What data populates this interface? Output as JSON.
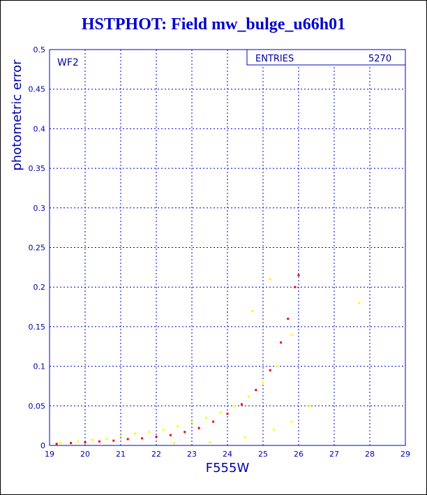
{
  "title": "HSTPHOT: Field mw_bulge_u66h01",
  "chart_data": {
    "type": "scatter",
    "title": "HSTPHOT: Field mw_bulge_u66h01",
    "xlabel": "F555W",
    "ylabel": "photometric error",
    "xlim": [
      19,
      29
    ],
    "ylim": [
      0,
      0.5
    ],
    "x_ticks": [
      "19",
      "20",
      "21",
      "22",
      "23",
      "24",
      "25",
      "26",
      "27",
      "28",
      "29"
    ],
    "y_ticks": [
      "0",
      "0.05",
      "0.1",
      "0.15",
      "0.2",
      "0.25",
      "0.3",
      "0.35",
      "0.4",
      "0.45",
      "0.5"
    ],
    "grid": true,
    "panel_label": "WF2",
    "stats": {
      "label": "ENTRIES",
      "value": "5270"
    },
    "series": [
      {
        "color": "#ffff00",
        "points": [
          [
            19.3,
            0.003
          ],
          [
            19.8,
            0.005
          ],
          [
            20.2,
            0.007
          ],
          [
            20.6,
            0.008
          ],
          [
            21.0,
            0.012
          ],
          [
            21.4,
            0.015
          ],
          [
            21.8,
            0.017
          ],
          [
            22.2,
            0.02
          ],
          [
            22.6,
            0.024
          ],
          [
            23.0,
            0.03
          ],
          [
            23.4,
            0.035
          ],
          [
            23.8,
            0.042
          ],
          [
            24.2,
            0.05
          ],
          [
            24.6,
            0.062
          ],
          [
            25.0,
            0.08
          ],
          [
            25.4,
            0.1
          ],
          [
            25.8,
            0.14
          ],
          [
            22.5,
            0.003
          ],
          [
            23.5,
            0.004
          ],
          [
            24.5,
            0.01
          ],
          [
            25.3,
            0.02
          ],
          [
            25.8,
            0.03
          ],
          [
            26.3,
            0.05
          ],
          [
            24.7,
            0.17
          ],
          [
            25.2,
            0.21
          ],
          [
            27.7,
            0.18
          ]
        ]
      },
      {
        "color": "#ff0000",
        "points": [
          [
            19.2,
            0.002
          ],
          [
            19.6,
            0.003
          ],
          [
            20.0,
            0.004
          ],
          [
            20.4,
            0.005
          ],
          [
            20.8,
            0.006
          ],
          [
            21.2,
            0.008
          ],
          [
            21.6,
            0.009
          ],
          [
            22.0,
            0.011
          ],
          [
            22.4,
            0.013
          ],
          [
            22.8,
            0.017
          ],
          [
            23.2,
            0.022
          ],
          [
            23.6,
            0.03
          ],
          [
            24.0,
            0.04
          ],
          [
            24.4,
            0.052
          ],
          [
            24.8,
            0.07
          ],
          [
            25.2,
            0.095
          ],
          [
            25.5,
            0.13
          ],
          [
            25.7,
            0.16
          ],
          [
            25.9,
            0.2
          ],
          [
            26.0,
            0.215
          ]
        ]
      }
    ]
  }
}
